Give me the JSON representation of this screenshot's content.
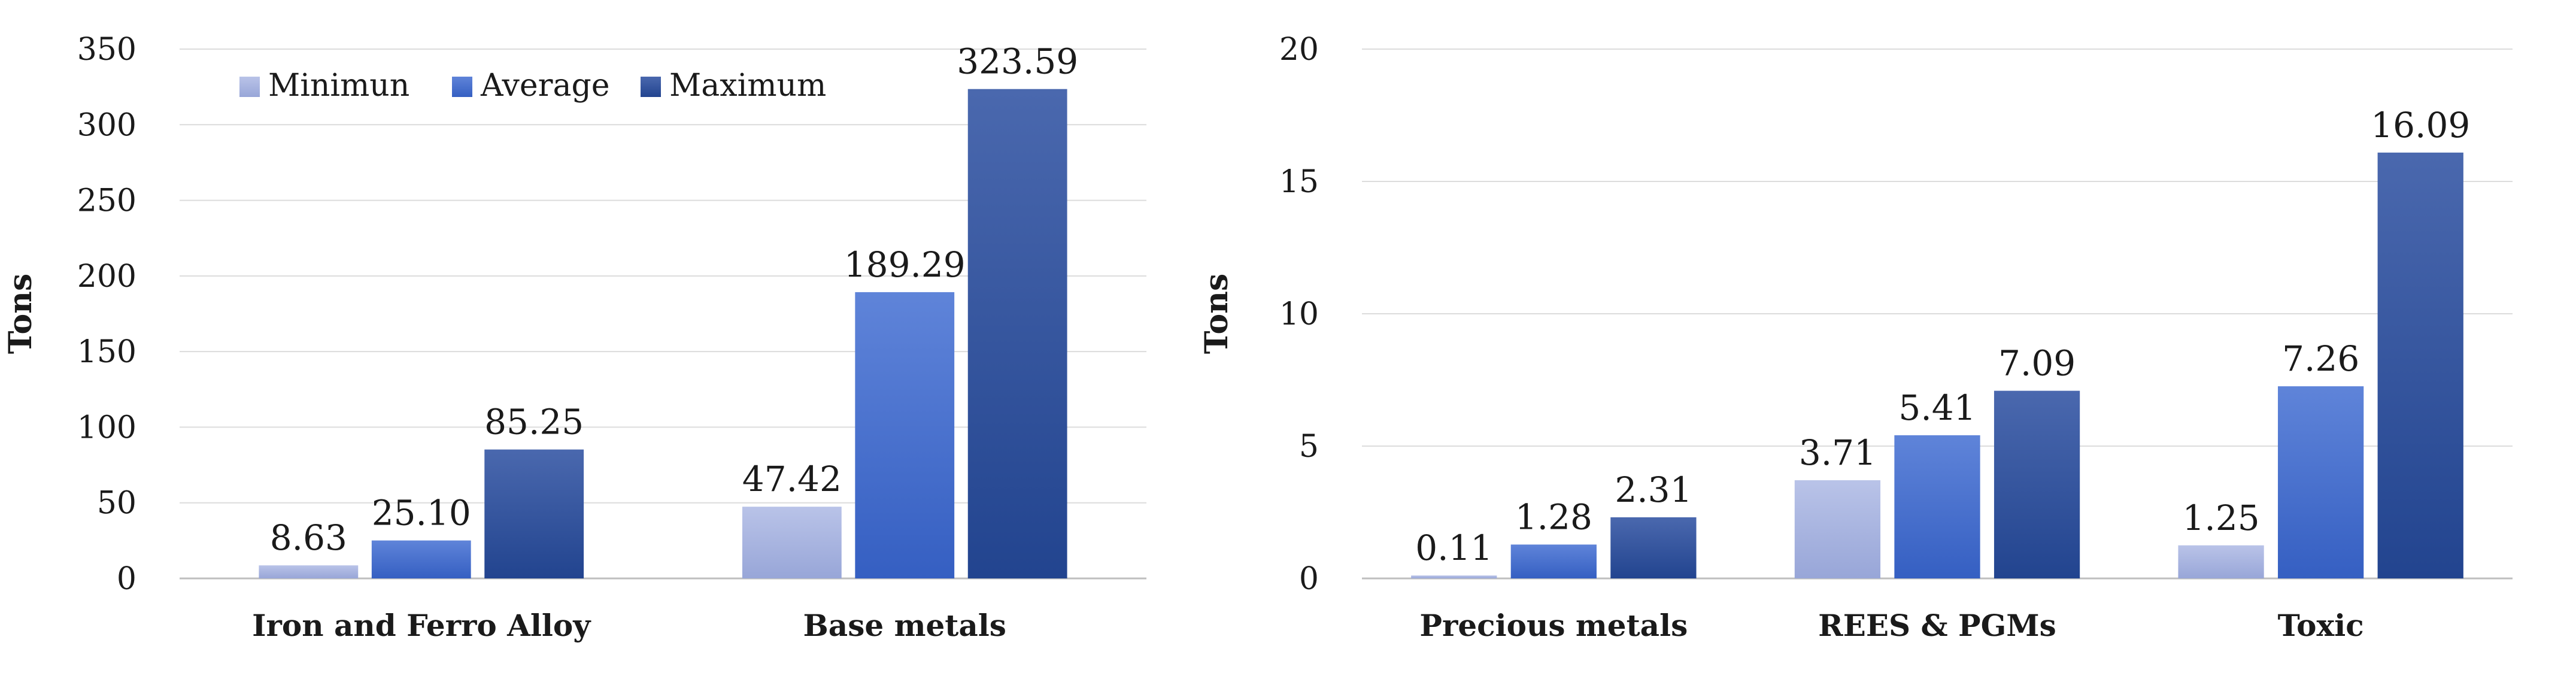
{
  "chart_data": [
    {
      "type": "bar",
      "ylabel": "Tons",
      "ylim": [
        0,
        350
      ],
      "yticks": [
        0,
        50,
        100,
        150,
        200,
        250,
        300,
        350
      ],
      "grid": true,
      "legend_position": "top-left",
      "categories": [
        "Iron and Ferro Alloy",
        "Base metals"
      ],
      "series": [
        {
          "name": "Minimun",
          "color": "#aab6e0",
          "values": [
            8.63,
            47.42
          ],
          "labels": [
            "8.63",
            "47.42"
          ]
        },
        {
          "name": "Average",
          "color": "#4a72cf",
          "values": [
            25.1,
            189.29
          ],
          "labels": [
            "25.10",
            "189.29"
          ]
        },
        {
          "name": "Maximum",
          "color": "#2f4f9c",
          "values": [
            85.25,
            323.59
          ],
          "labels": [
            "85.25",
            "323.59"
          ]
        }
      ]
    },
    {
      "type": "bar",
      "ylabel": "Tons",
      "ylim": [
        0,
        20
      ],
      "yticks": [
        0,
        5,
        10,
        15,
        20
      ],
      "grid": true,
      "categories": [
        "Precious metals",
        "REES & PGMs",
        "Toxic"
      ],
      "series": [
        {
          "name": "Minimun",
          "color": "#aab6e0",
          "values": [
            0.11,
            3.71,
            1.25
          ],
          "labels": [
            "0.11",
            "3.71",
            "1.25"
          ]
        },
        {
          "name": "Average",
          "color": "#4a72cf",
          "values": [
            1.28,
            5.41,
            7.26
          ],
          "labels": [
            "1.28",
            "5.41",
            "7.26"
          ]
        },
        {
          "name": "Maximum",
          "color": "#2f4f9c",
          "values": [
            2.31,
            7.09,
            16.09
          ],
          "labels": [
            "2.31",
            "7.09",
            "16.09"
          ]
        }
      ]
    }
  ]
}
